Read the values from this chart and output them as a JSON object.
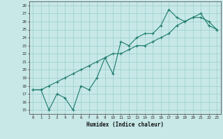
{
  "xlabel": "Humidex (Indice chaleur)",
  "background_color": "#c8e8e8",
  "grid_color": "#99cccc",
  "line_color": "#1a7a6a",
  "xlim": [
    -0.5,
    23.5
  ],
  "ylim": [
    14.5,
    28.5
  ],
  "yticks": [
    15,
    16,
    17,
    18,
    19,
    20,
    21,
    22,
    23,
    24,
    25,
    26,
    27,
    28
  ],
  "xticks": [
    0,
    1,
    2,
    3,
    4,
    5,
    6,
    7,
    8,
    9,
    10,
    11,
    12,
    13,
    14,
    15,
    16,
    17,
    18,
    19,
    20,
    21,
    22,
    23
  ],
  "line1_x": [
    0,
    1,
    2,
    3,
    4,
    5,
    6,
    7,
    8,
    9,
    10,
    11,
    12,
    13,
    14,
    15,
    16,
    17,
    18,
    19,
    20,
    21,
    22,
    23
  ],
  "line1_y": [
    17.5,
    17.5,
    15.0,
    17.0,
    16.5,
    15.0,
    18.0,
    17.5,
    19.0,
    21.5,
    19.5,
    23.5,
    23.0,
    24.0,
    24.5,
    24.5,
    25.5,
    27.5,
    26.5,
    26.0,
    26.5,
    26.5,
    26.0,
    25.0
  ],
  "line2_x": [
    0,
    1,
    2,
    3,
    4,
    5,
    6,
    7,
    8,
    9,
    10,
    11,
    12,
    13,
    14,
    15,
    16,
    17,
    18,
    19,
    20,
    21,
    22,
    23
  ],
  "line2_y": [
    17.5,
    17.5,
    18.0,
    18.5,
    19.0,
    19.5,
    20.0,
    20.5,
    21.0,
    21.5,
    22.0,
    22.0,
    22.5,
    23.0,
    23.0,
    23.5,
    24.0,
    24.5,
    25.5,
    26.0,
    26.5,
    27.0,
    25.5,
    25.0
  ]
}
